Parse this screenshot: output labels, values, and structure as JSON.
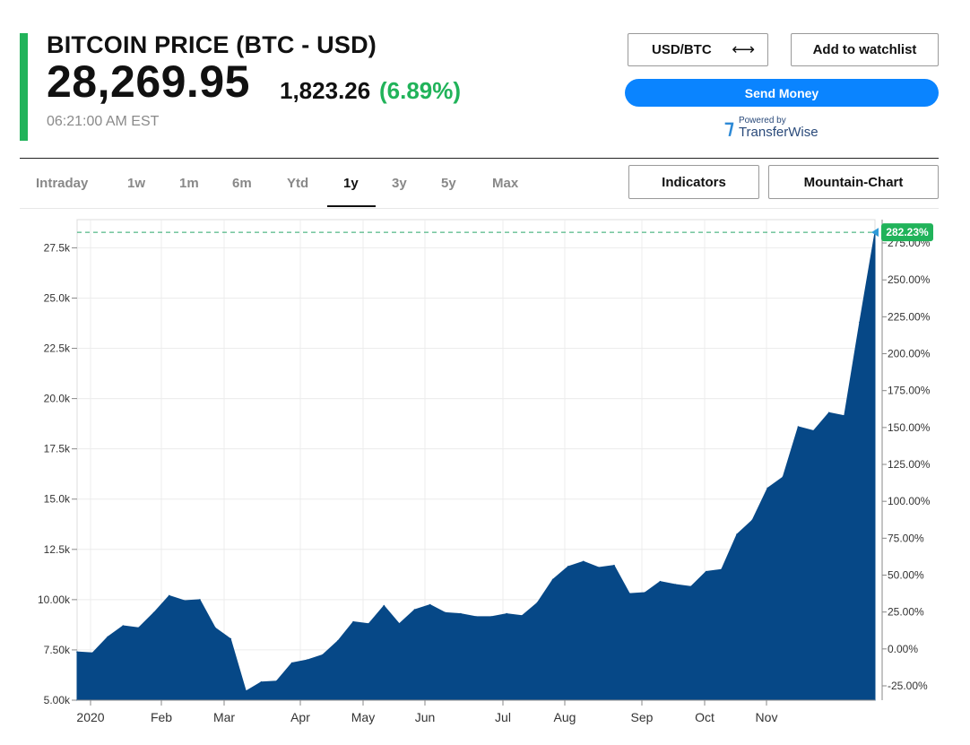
{
  "header": {
    "title": "BITCOIN PRICE (BTC - USD)",
    "price": "28,269.95",
    "change": "1,823.26",
    "change_pct": "(6.89%)",
    "timestamp": "06:21:00 AM EST"
  },
  "buttons": {
    "currency_label": "USD/BTC",
    "currency_arrow": "⟷",
    "watchlist_label": "Add to watchlist",
    "send_money_label": "Send Money",
    "indicators_label": "Indicators",
    "chart_type_label": "Mountain-Chart"
  },
  "sponsor": {
    "powered_by": "Powered by",
    "name": "TransferWise",
    "icon": "transferwise-flag-icon"
  },
  "tabs": [
    "Intraday",
    "1w",
    "1m",
    "6m",
    "Ytd",
    "1y",
    "3y",
    "5y",
    "Max"
  ],
  "active_tab": "1y",
  "colors": {
    "accent_green": "#21b35a",
    "area_fill": "#064887",
    "send_button": "#0a84ff",
    "reference_line": "#2aa86b"
  },
  "chart_data": {
    "type": "area",
    "y_left_ticks": [
      "5.00k",
      "7.50k",
      "10.00k",
      "12.5k",
      "15.0k",
      "17.5k",
      "20.0k",
      "22.5k",
      "25.0k",
      "27.5k"
    ],
    "y_right_ticks": [
      "-25.00%",
      "0.00%",
      "25.00%",
      "50.00%",
      "75.00%",
      "100.00%",
      "125.00%",
      "150.00%",
      "175.00%",
      "200.00%",
      "225.00%",
      "250.00%",
      "275.00%"
    ],
    "x_ticks": [
      "2020",
      "Feb",
      "Mar",
      "Apr",
      "May",
      "Jun",
      "Jul",
      "Aug",
      "Sep",
      "Oct",
      "Nov"
    ],
    "ylim": [
      5000,
      28900
    ],
    "y_right_range": [
      -25,
      282.23
    ],
    "last_value_label": "282.23%",
    "reference_value": 28269.95,
    "values": [
      7400,
      7350,
      8150,
      8700,
      8600,
      9350,
      10200,
      9950,
      10000,
      8600,
      8050,
      5450,
      5900,
      5950,
      6850,
      7000,
      7250,
      7950,
      8900,
      8800,
      9700,
      8800,
      9500,
      9750,
      9350,
      9300,
      9150,
      9150,
      9300,
      9200,
      9850,
      11000,
      11650,
      11900,
      11600,
      11700,
      10300,
      10350,
      10900,
      10750,
      10650,
      11400,
      11500,
      13250,
      13950,
      15550,
      16100,
      18600,
      18400,
      19300,
      19150,
      23800,
      28269.95
    ],
    "grid": true,
    "legend": "none"
  }
}
